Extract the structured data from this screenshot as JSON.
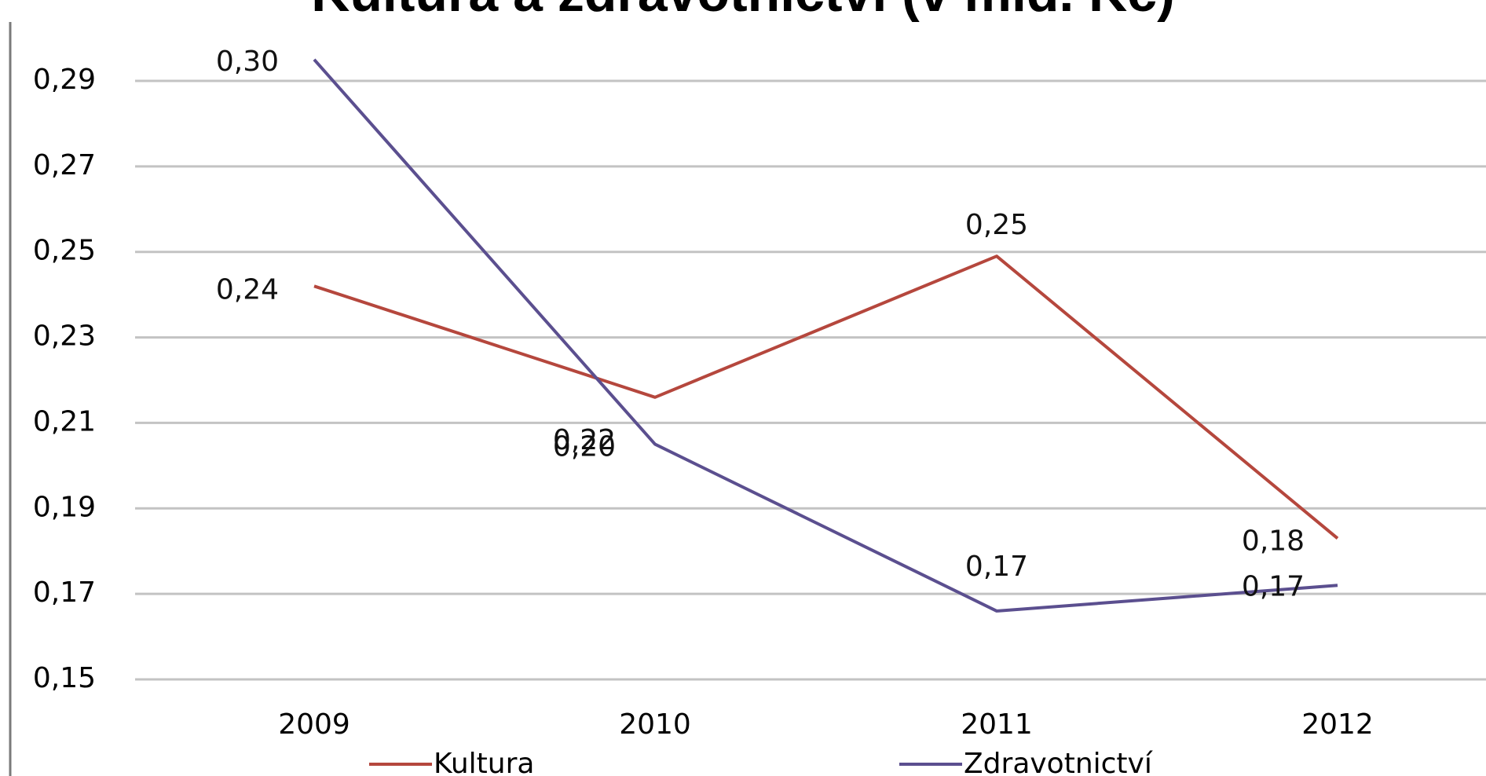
{
  "chart_data": {
    "type": "line",
    "title": "Kultura a zdravotnictví (v mld. Kč)",
    "categories": [
      "2009",
      "2010",
      "2011",
      "2012"
    ],
    "y_ticks": [
      "0,15",
      "0,17",
      "0,19",
      "0,21",
      "0,23",
      "0,25",
      "0,27",
      "0,29"
    ],
    "ylim": [
      0.15,
      0.29
    ],
    "grid": true,
    "legend_position": "bottom",
    "series": [
      {
        "name": "Kultura",
        "color": "#b5473d",
        "values": [
          0.242,
          0.216,
          0.249,
          0.183
        ],
        "labels": [
          "0,24",
          "0,22",
          "0,25",
          "0,18"
        ]
      },
      {
        "name": "Zdravotnictví",
        "color": "#5b4f8f",
        "values": [
          0.295,
          0.205,
          0.166,
          0.172
        ],
        "labels": [
          "0,30",
          "0,20",
          "0,17",
          "0,17"
        ]
      }
    ]
  }
}
